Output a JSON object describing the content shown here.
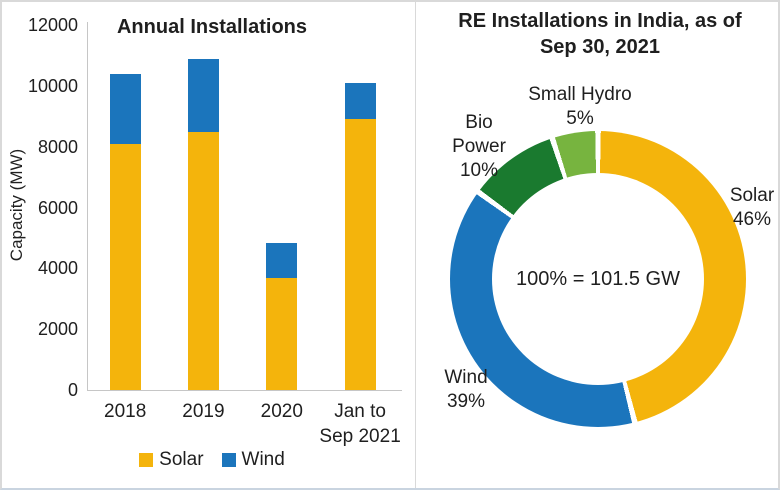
{
  "page": {
    "background": "#ffffff",
    "border_color": "#d9d9d9",
    "bottom_border_color": "#c9d4e0",
    "divider_color": "#d9d9d9",
    "text_color": "#1f1f1f",
    "axis_color": "#c6c6c6"
  },
  "colors": {
    "solar": "#F4B40C",
    "wind": "#1B75BC",
    "bio": "#1A7A2F",
    "hydro": "#77B43F"
  },
  "chart_data": [
    {
      "type": "bar",
      "stacked": true,
      "title": "Annual Installations",
      "xlabel": "",
      "ylabel": "Capacity (MW)",
      "categories": [
        "2018",
        "2019",
        "2020",
        "Jan to\nSep 2021"
      ],
      "series": [
        {
          "name": "Solar",
          "color_key": "solar",
          "values": [
            8100,
            8500,
            3700,
            8900
          ]
        },
        {
          "name": "Wind",
          "color_key": "wind",
          "values": [
            2300,
            2400,
            1150,
            1200
          ]
        }
      ],
      "totals": [
        10400,
        10900,
        4850,
        10100
      ],
      "ylim": [
        0,
        12000
      ],
      "yticks": [
        0,
        2000,
        4000,
        6000,
        8000,
        10000,
        12000
      ],
      "grid": false,
      "legend_position": "bottom"
    },
    {
      "type": "pie",
      "subtype": "donut",
      "title": "RE Installations in India, as of\nSep 30, 2021",
      "center_label": "100% = 101.5 GW",
      "start_angle_deg_clockwise_from_top": 0,
      "slices": [
        {
          "label": "Solar",
          "pct": 46,
          "pct_label": "46%",
          "color_key": "solar"
        },
        {
          "label": "Wind",
          "pct": 39,
          "pct_label": "39%",
          "color_key": "wind"
        },
        {
          "label": "Bio Power",
          "pct": 10,
          "pct_label": "10%",
          "color_key": "bio"
        },
        {
          "label": "Small Hydro",
          "pct": 5,
          "pct_label": "5%",
          "color_key": "hydro"
        }
      ]
    }
  ]
}
